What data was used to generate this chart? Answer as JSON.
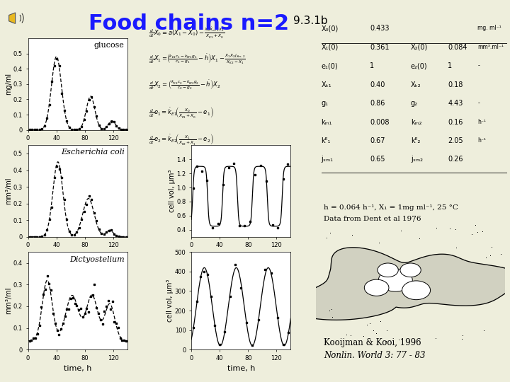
{
  "title": "Food chains n=2",
  "subtitle": "9.3.1b",
  "title_color": "#1a1aff",
  "bg_color": "#eeeedc",
  "glucose_label": "glucose",
  "ecoli_label": "Escherichia coli",
  "dicty_label": "Dictyostelium",
  "ylabel_glucose": "mg/ml",
  "ylabel_ecoli": "mm³/ml",
  "ylabel_dicty": "mm³/ml",
  "ylabel_ecoli_cv": "cell vol, μm³",
  "ylabel_dicty_cv": "cell vol, μm³",
  "xlabel": "time, h",
  "annotation_line1": "h = 0.064 h⁻¹, X₁ = 1mg ml⁻¹, 25 °C",
  "annotation_line2": "Data from Dent et al 1976",
  "citation_line1": "Kooijman & Kooi, 1996",
  "citation_line2": "Nonlin. World 3: 77 - 83",
  "params": [
    [
      "X₀(0)",
      "0.433",
      "",
      "",
      "mg. ml⁻¹"
    ],
    [
      "X₁(0)",
      "0.361",
      "X₂(0)",
      "0.084",
      "mm³.ml⁻¹"
    ],
    [
      "e₁(0)",
      "1",
      "e₂(0)",
      "1",
      "-"
    ],
    [
      "Xₖ₁",
      "0.40",
      "Xₖ₂",
      "0.18",
      ""
    ],
    [
      "g₁",
      "0.86",
      "g₂",
      "4.43",
      "-"
    ],
    [
      "kₘ₁",
      "0.008",
      "kₘ₂",
      "0.16",
      "h⁻¹"
    ],
    [
      "kᴱ₁",
      "0.67",
      "kᴱ₂",
      "2.05",
      "h⁻¹"
    ],
    [
      "jₓₘ₁",
      "0.65",
      "jₓₘ₂",
      "0.26",
      ""
    ]
  ]
}
